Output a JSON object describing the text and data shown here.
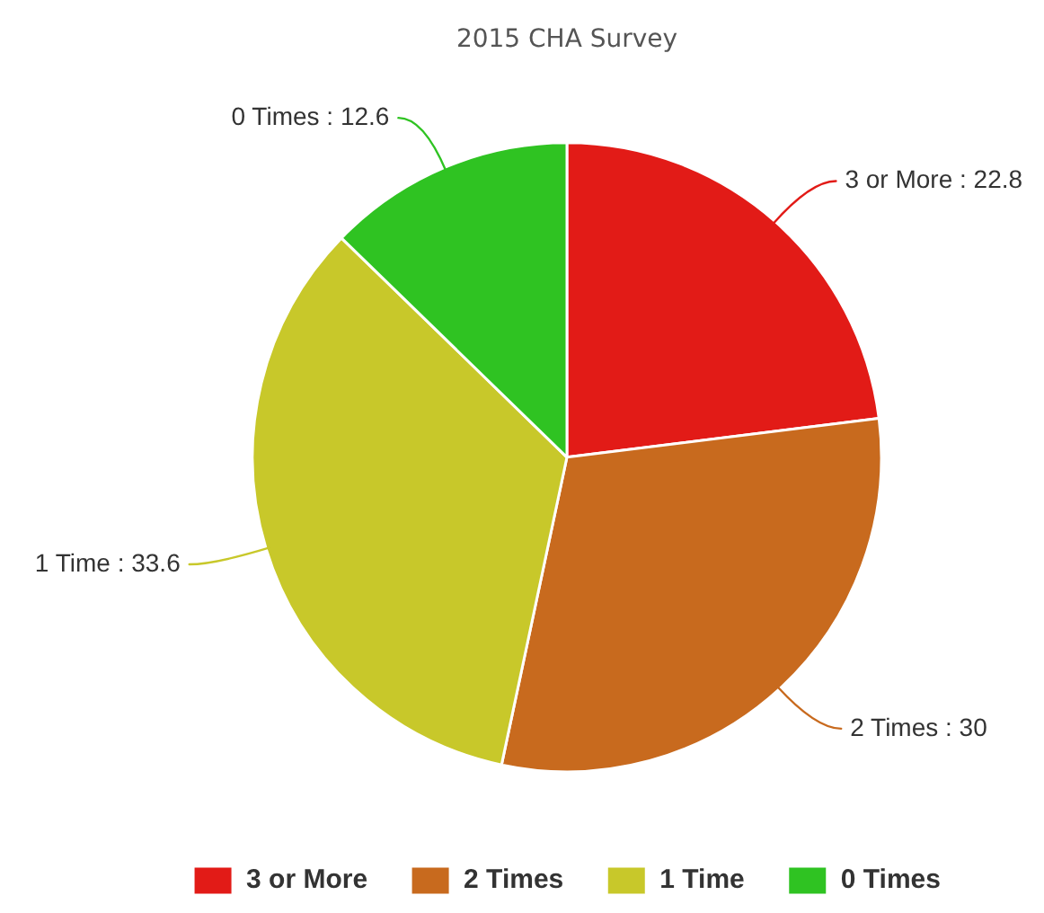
{
  "chart_data": {
    "type": "pie",
    "title": "2015 CHA Survey",
    "categories": [
      "3 or More",
      "2 Times",
      "1 Time",
      "0 Times"
    ],
    "values": [
      22.8,
      30,
      33.6,
      12.6
    ],
    "colors": [
      "#e21b17",
      "#c86a1e",
      "#c8c82a",
      "#2fc322"
    ],
    "value_labels": [
      "3 or More : 22.8",
      "2 Times : 30",
      "1 Time : 33.6",
      "0 Times : 12.6"
    ],
    "legend": "bottom"
  }
}
